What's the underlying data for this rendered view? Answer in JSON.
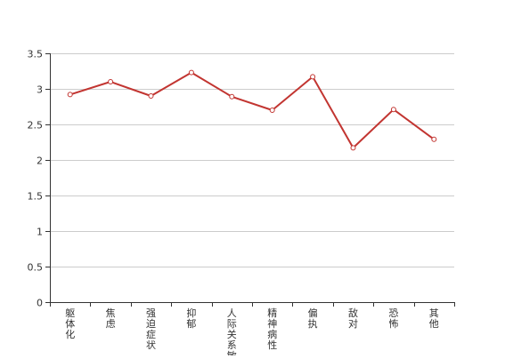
{
  "chart_data": {
    "type": "line",
    "title": "",
    "xlabel": "",
    "ylabel": "",
    "categories": [
      "躯体化",
      "焦虑",
      "强迫症状",
      "抑郁",
      "人际关系敏感",
      "精神病性",
      "偏执",
      "敌对",
      "恐怖",
      "其他"
    ],
    "series": [
      {
        "values": [
          2.92,
          3.1,
          2.9,
          3.23,
          2.89,
          2.7,
          3.17,
          2.17,
          2.71,
          2.29
        ],
        "color": "#c23531"
      }
    ],
    "ylim": [
      0,
      3.5
    ],
    "yticks": [
      "0",
      "0.5",
      "1",
      "1.5",
      "2",
      "2.5",
      "3",
      "3.5"
    ],
    "grid": true,
    "legend": "none",
    "colors": {
      "axis": "#333333",
      "grid": "#cccccc",
      "line": "#c23531",
      "marker_fill": "#ffffff"
    }
  }
}
